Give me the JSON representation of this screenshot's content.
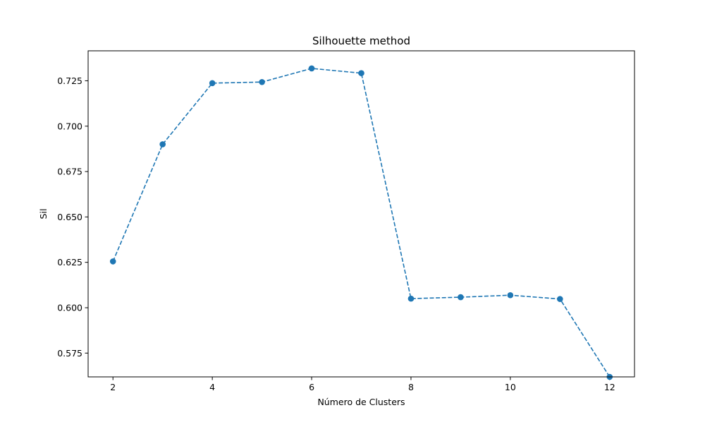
{
  "chart_data": {
    "type": "line",
    "title": "Silhouette method",
    "xlabel": "Número de Clusters",
    "ylabel": "Sil",
    "xlim": [
      1.5,
      12.5
    ],
    "ylim": [
      0.5619,
      0.7415
    ],
    "x_ticks": [
      2,
      4,
      6,
      8,
      10,
      12
    ],
    "x_tick_labels": [
      "2",
      "4",
      "6",
      "8",
      "10",
      "12"
    ],
    "y_ticks": [
      0.575,
      0.6,
      0.625,
      0.65,
      0.675,
      0.7,
      0.725
    ],
    "y_tick_labels": [
      "0.575",
      "0.600",
      "0.625",
      "0.650",
      "0.675",
      "0.700",
      "0.725"
    ],
    "grid": false,
    "line_style": "dashed",
    "marker": "circle",
    "color": "#1f77b4",
    "series": [
      {
        "x": [
          2,
          3,
          4,
          5,
          6,
          7,
          8,
          9,
          10,
          11,
          12
        ],
        "values": [
          0.6255,
          0.69,
          0.7237,
          0.7243,
          0.7318,
          0.7292,
          0.605,
          0.6058,
          0.6069,
          0.6048,
          0.5619
        ]
      }
    ]
  }
}
